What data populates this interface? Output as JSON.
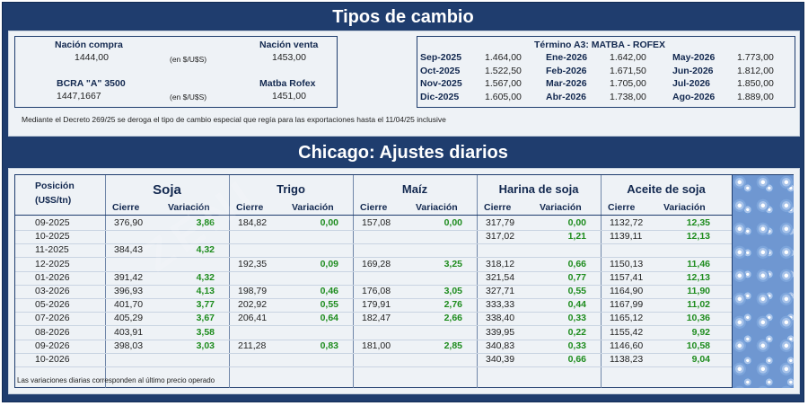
{
  "titles": {
    "tipos": "Tipos de cambio",
    "chicago": "Chicago: Ajustes diarios"
  },
  "tipos": {
    "nacion_compra_label": "Nación compra",
    "nacion_compra_value": "1444,00",
    "en_label_1": "(en $/U$S)",
    "nacion_venta_label": "Nación venta",
    "nacion_venta_value": "1453,00",
    "bcra_label": "BCRA \"A\" 3500",
    "bcra_value": "1447,1667",
    "en_label_2": "(en $/U$S)",
    "matba_label": "Matba Rofex",
    "matba_value": "1451,00",
    "decreto_note": "Mediante el Decreto 269/25 se deroga el tipo de cambio especial que regía para las exportaciones hasta el 11/04/25 inclusive"
  },
  "termino": {
    "title": "Término A3: MATBA - ROFEX",
    "rows": [
      [
        "Sep-2025",
        "1.464,00",
        "Ene-2026",
        "1.642,00",
        "May-2026",
        "1.773,00"
      ],
      [
        "Oct-2025",
        "1.522,50",
        "Feb-2026",
        "1.671,50",
        "Jun-2026",
        "1.812,00"
      ],
      [
        "Nov-2025",
        "1.567,00",
        "Mar-2026",
        "1.705,00",
        "Jul-2026",
        "1.850,00"
      ],
      [
        "Dic-2025",
        "1.605,00",
        "Abr-2026",
        "1.738,00",
        "Ago-2026",
        "1.889,00"
      ]
    ]
  },
  "chicago": {
    "posicion_label": "Posición",
    "posicion_unit": "(U$S/tn)",
    "groups": [
      "Soja",
      "Trigo",
      "Maíz",
      "Harina de soja",
      "Aceite de soja"
    ],
    "cierre": "Cierre",
    "variacion": "Variación",
    "rows": [
      {
        "pos": "09-2025",
        "soja_c": "376,90",
        "soja_v": "3,86",
        "trigo_c": "184,82",
        "trigo_v": "0,00",
        "maiz_c": "157,08",
        "maiz_v": "0,00",
        "harina_c": "317,79",
        "harina_v": "0,00",
        "aceite_c": "1132,72",
        "aceite_v": "12,35"
      },
      {
        "pos": "10-2025",
        "soja_c": "",
        "soja_v": "",
        "trigo_c": "",
        "trigo_v": "",
        "maiz_c": "",
        "maiz_v": "",
        "harina_c": "317,02",
        "harina_v": "1,21",
        "aceite_c": "1139,11",
        "aceite_v": "12,13"
      },
      {
        "pos": "11-2025",
        "soja_c": "384,43",
        "soja_v": "4,32",
        "trigo_c": "",
        "trigo_v": "",
        "maiz_c": "",
        "maiz_v": "",
        "harina_c": "",
        "harina_v": "",
        "aceite_c": "",
        "aceite_v": ""
      },
      {
        "pos": "12-2025",
        "soja_c": "",
        "soja_v": "",
        "trigo_c": "192,35",
        "trigo_v": "0,09",
        "maiz_c": "169,28",
        "maiz_v": "3,25",
        "harina_c": "318,12",
        "harina_v": "0,66",
        "aceite_c": "1150,13",
        "aceite_v": "11,46"
      },
      {
        "pos": "01-2026",
        "soja_c": "391,42",
        "soja_v": "4,32",
        "trigo_c": "",
        "trigo_v": "",
        "maiz_c": "",
        "maiz_v": "",
        "harina_c": "321,54",
        "harina_v": "0,77",
        "aceite_c": "1157,41",
        "aceite_v": "12,13"
      },
      {
        "pos": "03-2026",
        "soja_c": "396,93",
        "soja_v": "4,13",
        "trigo_c": "198,79",
        "trigo_v": "0,46",
        "maiz_c": "176,08",
        "maiz_v": "3,05",
        "harina_c": "327,71",
        "harina_v": "0,55",
        "aceite_c": "1164,90",
        "aceite_v": "11,90"
      },
      {
        "pos": "05-2026",
        "soja_c": "401,70",
        "soja_v": "3,77",
        "trigo_c": "202,92",
        "trigo_v": "0,55",
        "maiz_c": "179,91",
        "maiz_v": "2,76",
        "harina_c": "333,33",
        "harina_v": "0,44",
        "aceite_c": "1167,99",
        "aceite_v": "11,02"
      },
      {
        "pos": "07-2026",
        "soja_c": "405,29",
        "soja_v": "3,67",
        "trigo_c": "206,41",
        "trigo_v": "0,64",
        "maiz_c": "182,47",
        "maiz_v": "2,66",
        "harina_c": "338,40",
        "harina_v": "0,33",
        "aceite_c": "1165,12",
        "aceite_v": "10,36"
      },
      {
        "pos": "08-2026",
        "soja_c": "403,91",
        "soja_v": "3,58",
        "trigo_c": "",
        "trigo_v": "",
        "maiz_c": "",
        "maiz_v": "",
        "harina_c": "339,95",
        "harina_v": "0,22",
        "aceite_c": "1155,42",
        "aceite_v": "9,92"
      },
      {
        "pos": "09-2026",
        "soja_c": "398,03",
        "soja_v": "3,03",
        "trigo_c": "211,28",
        "trigo_v": "0,83",
        "maiz_c": "181,00",
        "maiz_v": "2,85",
        "harina_c": "340,83",
        "harina_v": "0,33",
        "aceite_c": "1146,60",
        "aceite_v": "10,58"
      },
      {
        "pos": "10-2026",
        "soja_c": "",
        "soja_v": "",
        "trigo_c": "",
        "trigo_v": "",
        "maiz_c": "",
        "maiz_v": "",
        "harina_c": "340,39",
        "harina_v": "0,66",
        "aceite_c": "1138,23",
        "aceite_v": "9,04"
      }
    ],
    "footnote": "Las variaciones diarias corresponden al último precio operado"
  },
  "colors": {
    "navy": "#1f3d6e",
    "panel": "#eef2f6",
    "green": "#1e8c1e"
  }
}
